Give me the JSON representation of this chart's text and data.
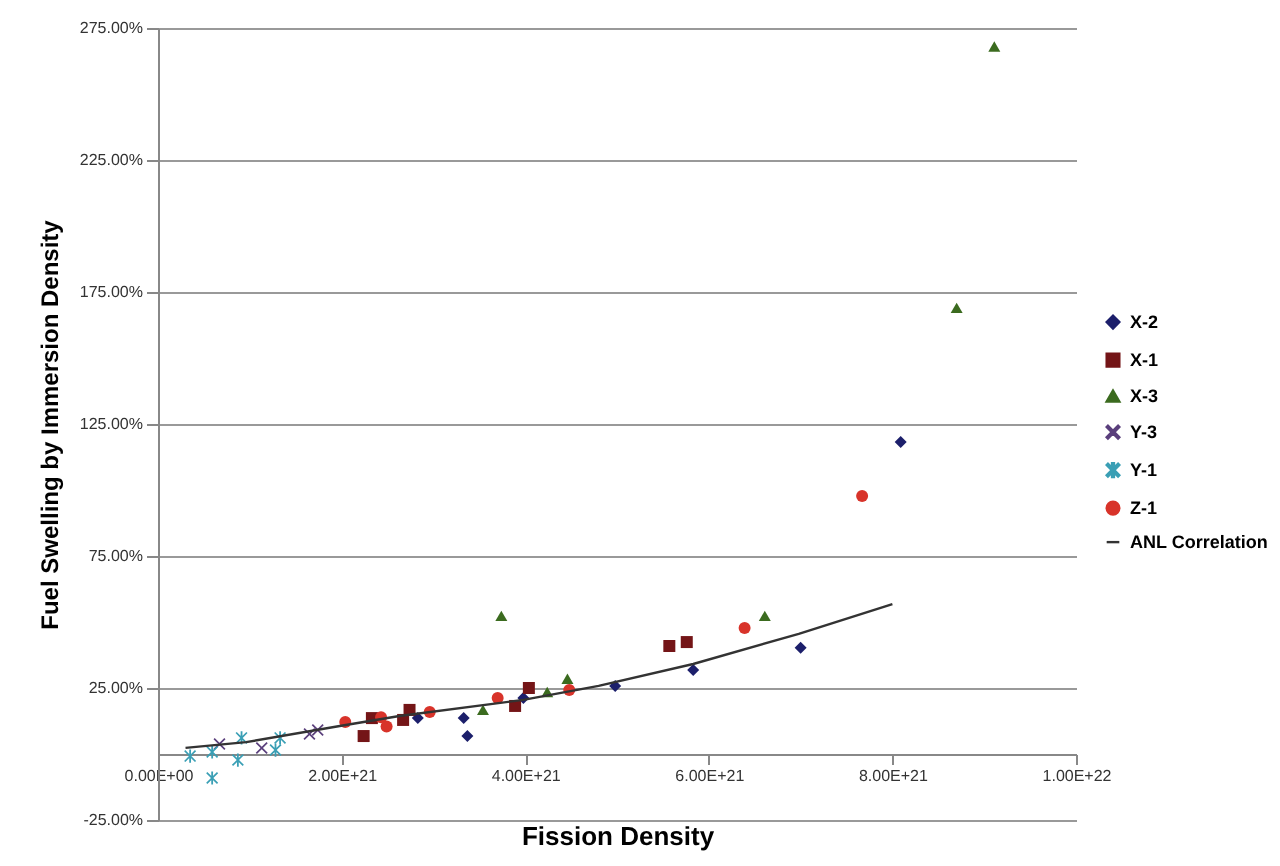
{
  "chart_data": {
    "type": "scatter",
    "xlabel": "Fission Density",
    "ylabel": "Fuel Swelling by Immersion Density",
    "xlim": [
      0,
      1e+22
    ],
    "ylim": [
      -25,
      275
    ],
    "xticks": [
      {
        "value": 0,
        "label": "0.00E+00"
      },
      {
        "value": 2e+21,
        "label": "2.00E+21"
      },
      {
        "value": 4e+21,
        "label": "4.00E+21"
      },
      {
        "value": 6e+21,
        "label": "6.00E+21"
      },
      {
        "value": 8e+21,
        "label": "8.00E+21"
      },
      {
        "value": 1e+22,
        "label": "1.00E+22"
      }
    ],
    "yticks": [
      {
        "value": -25,
        "label": "-25.00%"
      },
      {
        "value": 25,
        "label": "25.00%"
      },
      {
        "value": 75,
        "label": "75.00%"
      },
      {
        "value": 125,
        "label": "125.00%"
      },
      {
        "value": 175,
        "label": "175.00%"
      },
      {
        "value": 225,
        "label": "225.00%"
      },
      {
        "value": 275,
        "label": "275.00%"
      }
    ],
    "grid": "y",
    "legend": "right",
    "series": [
      {
        "name": "X-2",
        "color": "#1c1f6b",
        "marker": "diamond",
        "x": [
          2.83e+21,
          3.33e+21,
          3.37e+21,
          3.98e+21,
          4.98e+21,
          5.83e+21,
          7e+21,
          8.09e+21
        ],
        "values": [
          13.6,
          13.6,
          6.8,
          21.2,
          25.8,
          31.8,
          40.2,
          118.2
        ]
      },
      {
        "name": "X-1",
        "color": "#741517",
        "marker": "square",
        "x": [
          2.24e+21,
          2.33e+21,
          2.67e+21,
          2.74e+21,
          3.89e+21,
          4.04e+21,
          5.57e+21,
          5.76e+21
        ],
        "values": [
          6.8,
          13.6,
          12.9,
          16.7,
          18.2,
          25.0,
          40.9,
          42.4
        ]
      },
      {
        "name": "X-3",
        "color": "#3b6b1f",
        "marker": "triangle",
        "x": [
          3.54e+21,
          3.74e+21,
          4.24e+21,
          4.46e+21,
          6.61e+21,
          8.7e+21,
          9.11e+21
        ],
        "values": [
          16.7,
          52.3,
          23.5,
          28.5,
          52.3,
          169,
          268
        ]
      },
      {
        "name": "Y-3",
        "color": "#5a3f7c",
        "marker": "cross",
        "x": [
          6.7e+20,
          1.13e+21,
          1.65e+21,
          1.74e+21
        ],
        "values": [
          3.8,
          2.3,
          7.6,
          9.1
        ]
      },
      {
        "name": "Y-1",
        "color": "#3a9fb5",
        "marker": "star",
        "x": [
          3.5e+20,
          5.9e+20,
          5.9e+20,
          8.7e+20,
          9.1e+20,
          1.28e+21,
          1.33e+21
        ],
        "values": [
          -0.8,
          0.8,
          -9.1,
          -2.3,
          6.1,
          1.5,
          6.1
        ]
      },
      {
        "name": "Z-1",
        "color": "#d8332a",
        "marker": "circle",
        "x": [
          2.04e+21,
          2.43e+21,
          2.49e+21,
          2.96e+21,
          3.7e+21,
          4.48e+21,
          6.39e+21,
          7.67e+21
        ],
        "values": [
          12.1,
          13.9,
          10.4,
          15.9,
          21.2,
          24.2,
          47.7,
          97.7
        ]
      },
      {
        "name": "ANL Correlation",
        "type": "line",
        "color": "#333333",
        "marker": "none",
        "x": [
          3e+20,
          9.6e+20,
          1.98e+21,
          2.63e+21,
          3.98e+21,
          4.8e+21,
          5.83e+21,
          6.98e+21,
          8e+21
        ],
        "values": [
          2.3,
          4.5,
          10.6,
          14.4,
          20.5,
          25.8,
          34.1,
          45.5,
          56.8
        ]
      }
    ]
  }
}
